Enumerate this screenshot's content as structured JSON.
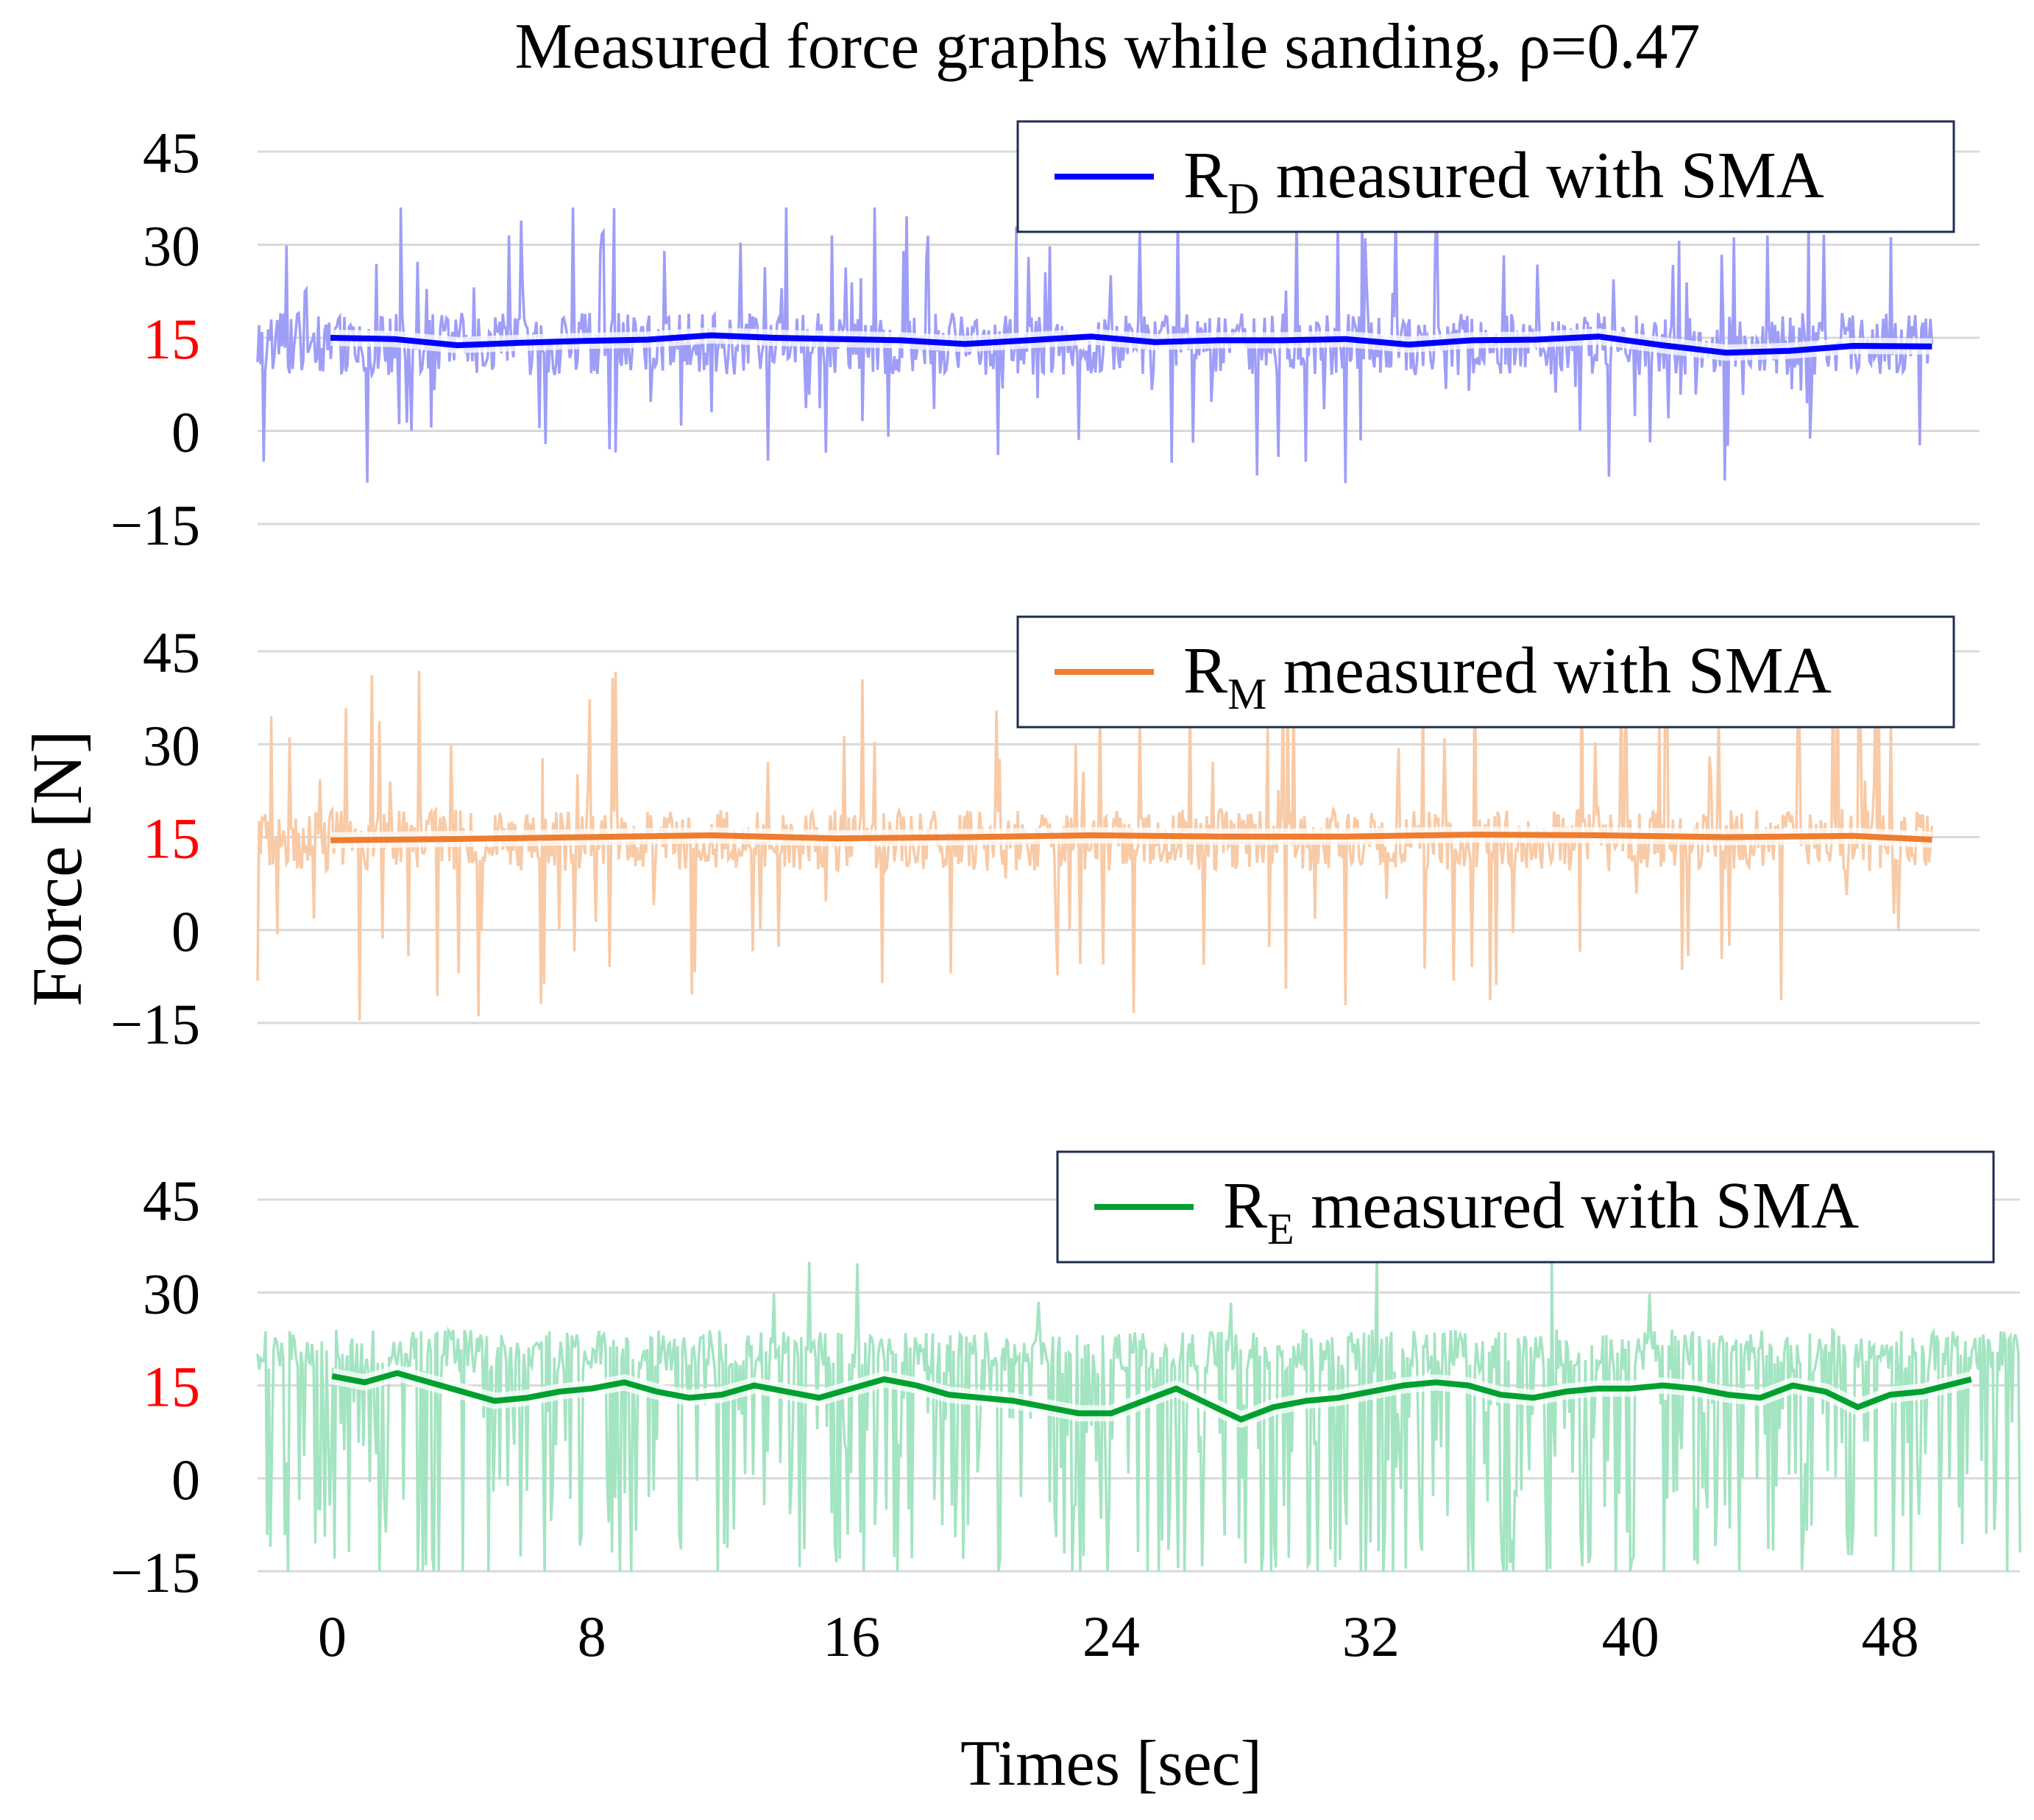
{
  "chart_data": {
    "type": "line",
    "title": "Measured force graphs while sanding, ρ=0.47",
    "xlabel": "Times [sec]",
    "ylabel": "Force [N]",
    "xlim": [
      -2.3,
      52
    ],
    "x_ticks": [
      0,
      8,
      16,
      24,
      32,
      40,
      48
    ],
    "x_tick_labels": [
      "0",
      "8",
      "16",
      "24",
      "32",
      "40",
      "48"
    ],
    "y_ticks": [
      45,
      30,
      15,
      0,
      -15
    ],
    "y_tick_labels": [
      "45",
      "30",
      "15",
      "0",
      "−15"
    ],
    "highlight_tick": {
      "value": 15,
      "color": "#ff0000"
    },
    "grid": "horizontal",
    "legend_position": "top-right",
    "panels": [
      {
        "id": "rd",
        "ylim": [
          -15,
          45
        ],
        "legend_main": "R",
        "legend_sub": "D",
        "legend_rest": " measured with SMA",
        "smooth_color": "#0000ff",
        "raw_color": "#9e9ef7",
        "raw_sample": {
          "x": [
            -2.3,
            50.5
          ],
          "mean": 14,
          "up_spike": 36,
          "down_spike": -9
        },
        "series": [
          {
            "name": "R_D measured with SMA",
            "x": [
              0,
              2,
              4,
              6,
              8,
              10,
              12,
              14,
              16,
              18,
              20,
              22,
              24,
              26,
              28,
              30,
              32,
              34,
              36,
              38,
              40,
              42,
              44,
              46,
              48,
              50.5
            ],
            "y": [
              15,
              14.8,
              13.8,
              14.2,
              14.5,
              14.7,
              15.4,
              15,
              14.8,
              14.6,
              14,
              14.6,
              15.2,
              14.3,
              14.6,
              14.6,
              14.8,
              13.9,
              14.6,
              14.7,
              15.2,
              13.8,
              12.6,
              12.9,
              13.7,
              13.6
            ]
          }
        ]
      },
      {
        "id": "rm",
        "ylim": [
          -15,
          45
        ],
        "legend_main": "R",
        "legend_sub": "M",
        "legend_rest": " measured with SMA",
        "smooth_color": "#ed7d31",
        "raw_color": "#f8caa6",
        "raw_sample": {
          "x": [
            -2.3,
            50.5
          ],
          "mean": 14.5,
          "up_spike": 45,
          "down_spike": -15
        },
        "series": [
          {
            "name": "R_M measured with SMA",
            "x": [
              0,
              4,
              8,
              12,
              16,
              20,
              24,
              28,
              32,
              36,
              40,
              44,
              48,
              50.5
            ],
            "y": [
              14.5,
              14.7,
              15,
              15.3,
              14.8,
              15,
              15.3,
              15.1,
              15.1,
              15.4,
              15.3,
              15,
              15.2,
              14.6
            ]
          }
        ]
      },
      {
        "id": "re",
        "ylim": [
          -15,
          45
        ],
        "legend_main": "R",
        "legend_sub": "E",
        "legend_rest": " measured with SMA",
        "smooth_color": "#00a030",
        "raw_color": "#a3e4c1",
        "raw_sample": {
          "x": [
            -2.3,
            52
          ],
          "mean": 18,
          "up_spike": 42,
          "down_spike": -15
        },
        "series": [
          {
            "name": "R_E measured with SMA",
            "x": [
              0,
              1,
              2,
              3,
              4,
              5,
              6,
              7,
              8,
              9,
              10,
              11,
              12,
              13,
              14,
              15,
              16,
              17,
              18,
              19,
              20,
              21,
              22,
              23,
              24,
              25,
              26,
              27,
              28,
              29,
              30,
              31,
              32,
              33,
              34,
              35,
              36,
              37,
              38,
              39,
              40,
              41,
              42,
              43,
              44,
              45,
              46,
              47,
              48,
              49,
              50.5
            ],
            "y": [
              16.5,
              15.5,
              17,
              15.5,
              14,
              12.5,
              13,
              14,
              14.5,
              15.5,
              14,
              13,
              13.5,
              15,
              14,
              13,
              14.5,
              16,
              15,
              13.5,
              13,
              12.5,
              11.5,
              10.5,
              10.5,
              12.5,
              14.5,
              12,
              9.5,
              11.5,
              12.5,
              13,
              14,
              15,
              15.5,
              15,
              13.5,
              13,
              14,
              14.5,
              14.5,
              15,
              14.5,
              13.5,
              13,
              15,
              14,
              11.5,
              13.5,
              14,
              16
            ]
          }
        ]
      }
    ]
  }
}
